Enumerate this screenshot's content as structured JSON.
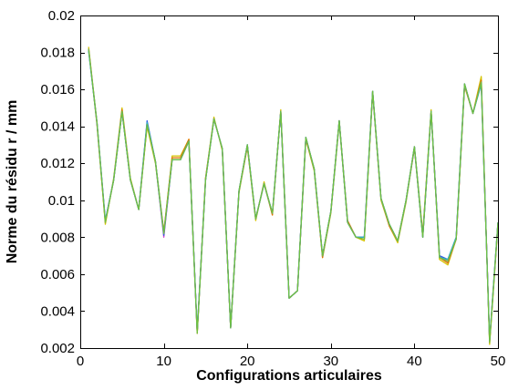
{
  "chart_data": {
    "type": "line",
    "title": "",
    "xlabel": "Configurations articulaires",
    "ylabel": "Norme du résidu r / mm",
    "xlim": [
      0,
      50
    ],
    "ylim": [
      0.002,
      0.02
    ],
    "xticks": [
      0,
      10,
      20,
      30,
      40,
      50
    ],
    "xtick_labels": [
      "0",
      "10",
      "20",
      "30",
      "40",
      "50"
    ],
    "yticks": [
      0.002,
      0.004,
      0.006,
      0.008,
      0.01,
      0.012,
      0.014,
      0.016,
      0.018,
      0.02
    ],
    "ytick_labels": [
      "0.002",
      "0.004",
      "0.006",
      "0.008",
      "0.01",
      "0.012",
      "0.014",
      "0.016",
      "0.018",
      "0.02"
    ],
    "grid": false,
    "legend": false,
    "x": [
      1,
      2,
      3,
      4,
      5,
      6,
      7,
      8,
      9,
      10,
      11,
      12,
      13,
      14,
      15,
      16,
      17,
      18,
      19,
      20,
      21,
      22,
      23,
      24,
      25,
      26,
      27,
      28,
      29,
      30,
      31,
      32,
      33,
      34,
      35,
      36,
      37,
      38,
      39,
      40,
      41,
      42,
      43,
      44,
      45,
      46,
      47,
      48,
      49,
      50
    ],
    "series": [
      {
        "color": "#d4c400",
        "values": [
          0.0183,
          0.0142,
          0.0087,
          0.0112,
          0.015,
          0.0112,
          0.0095,
          0.014,
          0.012,
          0.0082,
          0.0124,
          0.0124,
          0.0133,
          0.0028,
          0.0112,
          0.0145,
          0.0127,
          0.0031,
          0.0104,
          0.0129,
          0.0089,
          0.011,
          0.0092,
          0.0149,
          0.0047,
          0.0051,
          0.0133,
          0.0116,
          0.0069,
          0.0093,
          0.0142,
          0.0088,
          0.008,
          0.0078,
          0.0159,
          0.01,
          0.0086,
          0.0077,
          0.0099,
          0.0129,
          0.0082,
          0.0149,
          0.0068,
          0.0065,
          0.0079,
          0.0162,
          0.0147,
          0.0167,
          0.0022,
          0.0087
        ]
      },
      {
        "color": "#e07000",
        "values": [
          0.0182,
          0.0141,
          0.0088,
          0.0111,
          0.0149,
          0.0111,
          0.0095,
          0.0141,
          0.0121,
          0.0083,
          0.0123,
          0.0123,
          0.0133,
          0.0028,
          0.0112,
          0.0144,
          0.0128,
          0.0031,
          0.0105,
          0.0129,
          0.009,
          0.0109,
          0.0092,
          0.0148,
          0.0047,
          0.0051,
          0.0133,
          0.0117,
          0.0069,
          0.0094,
          0.0143,
          0.0089,
          0.008,
          0.0079,
          0.0158,
          0.0101,
          0.0086,
          0.0078,
          0.01,
          0.0128,
          0.0081,
          0.0148,
          0.0069,
          0.0066,
          0.0079,
          0.0162,
          0.0147,
          0.0165,
          0.0023,
          0.0087
        ]
      },
      {
        "color": "#d040d0",
        "values": [
          0.0182,
          0.0142,
          0.0089,
          0.0111,
          0.0148,
          0.0111,
          0.0095,
          0.0142,
          0.0121,
          0.008,
          0.0122,
          0.0122,
          0.0132,
          0.0029,
          0.0111,
          0.0144,
          0.0128,
          0.0031,
          0.0105,
          0.013,
          0.009,
          0.0109,
          0.0093,
          0.0148,
          0.0047,
          0.0051,
          0.0134,
          0.0117,
          0.007,
          0.0094,
          0.0143,
          0.0088,
          0.008,
          0.008,
          0.0159,
          0.0101,
          0.0087,
          0.0078,
          0.01,
          0.0129,
          0.008,
          0.0148,
          0.007,
          0.0067,
          0.0079,
          0.0163,
          0.0147,
          0.0164,
          0.0024,
          0.0088
        ]
      },
      {
        "color": "#3060e0",
        "values": [
          0.0181,
          0.0142,
          0.0089,
          0.0111,
          0.0148,
          0.0111,
          0.0095,
          0.0143,
          0.0121,
          0.0081,
          0.0122,
          0.0122,
          0.0132,
          0.0029,
          0.0111,
          0.0144,
          0.0128,
          0.0031,
          0.0105,
          0.013,
          0.009,
          0.0109,
          0.0093,
          0.0148,
          0.0047,
          0.0051,
          0.0134,
          0.0117,
          0.007,
          0.0094,
          0.0143,
          0.0088,
          0.008,
          0.008,
          0.0159,
          0.0101,
          0.0087,
          0.0078,
          0.01,
          0.0129,
          0.008,
          0.0148,
          0.007,
          0.0068,
          0.008,
          0.0163,
          0.0147,
          0.0163,
          0.0024,
          0.0088
        ]
      },
      {
        "color": "#30b0c0",
        "values": [
          0.0181,
          0.0142,
          0.0089,
          0.0111,
          0.0148,
          0.0111,
          0.0095,
          0.0142,
          0.0121,
          0.0082,
          0.0122,
          0.0122,
          0.0132,
          0.0029,
          0.0111,
          0.0144,
          0.0128,
          0.0031,
          0.0105,
          0.013,
          0.009,
          0.0109,
          0.0093,
          0.0148,
          0.0047,
          0.0051,
          0.0134,
          0.0117,
          0.007,
          0.0094,
          0.0143,
          0.0088,
          0.008,
          0.008,
          0.0159,
          0.0101,
          0.0087,
          0.0078,
          0.01,
          0.0129,
          0.008,
          0.0148,
          0.0069,
          0.0068,
          0.008,
          0.0163,
          0.0147,
          0.0163,
          0.0024,
          0.0088
        ]
      },
      {
        "color": "#70c040",
        "values": [
          0.0182,
          0.0142,
          0.0088,
          0.0111,
          0.0148,
          0.0111,
          0.0095,
          0.0141,
          0.0121,
          0.0082,
          0.0122,
          0.0122,
          0.0132,
          0.0028,
          0.0111,
          0.0144,
          0.0128,
          0.0031,
          0.0105,
          0.013,
          0.009,
          0.0109,
          0.0093,
          0.0148,
          0.0047,
          0.0051,
          0.0134,
          0.0117,
          0.007,
          0.0094,
          0.0143,
          0.0088,
          0.008,
          0.0079,
          0.0159,
          0.0101,
          0.0087,
          0.0078,
          0.01,
          0.0129,
          0.008,
          0.0148,
          0.0069,
          0.0067,
          0.0079,
          0.0163,
          0.0147,
          0.0164,
          0.0023,
          0.0088
        ]
      }
    ]
  }
}
